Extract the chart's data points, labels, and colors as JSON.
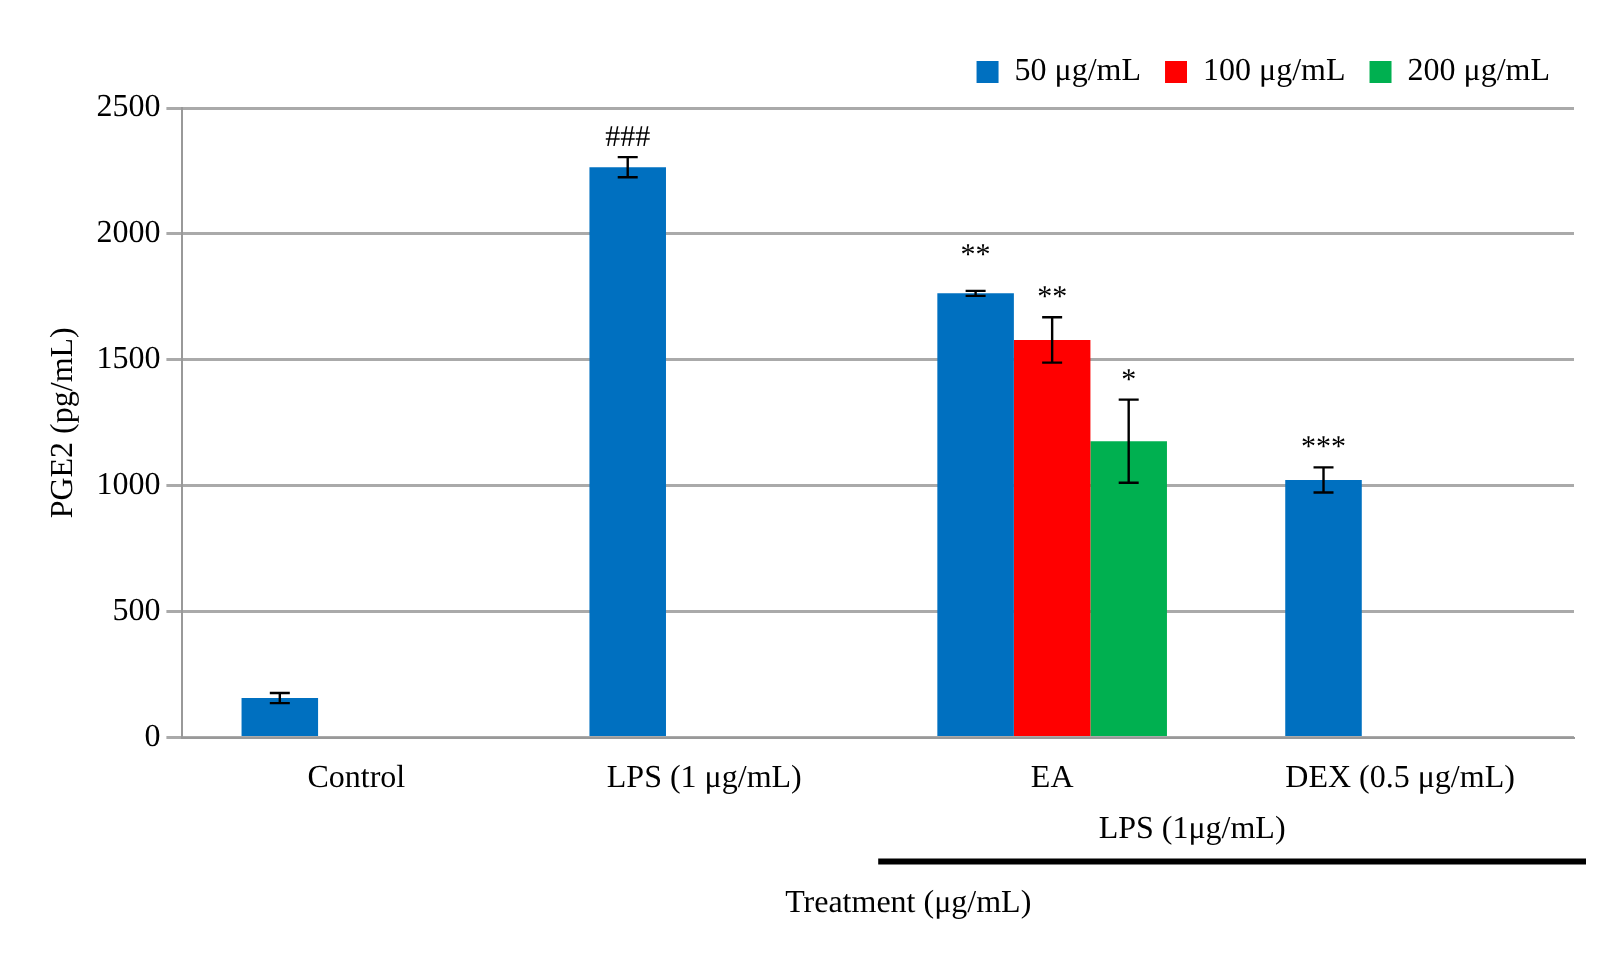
{
  "chart_data": {
    "type": "bar",
    "xlabel": "Treatment (μg/mL)",
    "ylabel": "PGE2 (pg/mL)",
    "categories": [
      "Control",
      "LPS (1 μg/mL)",
      "EA",
      "DEX (0.5 μg/mL)"
    ],
    "series": [
      {
        "name": "50 μg/mL",
        "color": "#0070c0",
        "values": [
          157,
          2265,
          1764,
          1023
        ],
        "errors": [
          20,
          40,
          10,
          50
        ]
      },
      {
        "name": "100 μg/mL",
        "color": "#ff0000",
        "values": [
          null,
          null,
          1579,
          null
        ],
        "errors": [
          null,
          null,
          90,
          null
        ]
      },
      {
        "name": "200 μg/mL",
        "color": "#00b050",
        "values": [
          null,
          null,
          1177,
          null
        ],
        "errors": [
          null,
          null,
          165,
          null
        ]
      }
    ],
    "ylim": [
      0,
      2500
    ],
    "yticks": [
      0,
      500,
      1000,
      1500,
      2000,
      2500
    ],
    "grid": "y",
    "legend": "top right",
    "annotations": [
      "###",
      "**",
      "**",
      "*",
      "***",
      "LPS (1μg/mL)"
    ]
  }
}
